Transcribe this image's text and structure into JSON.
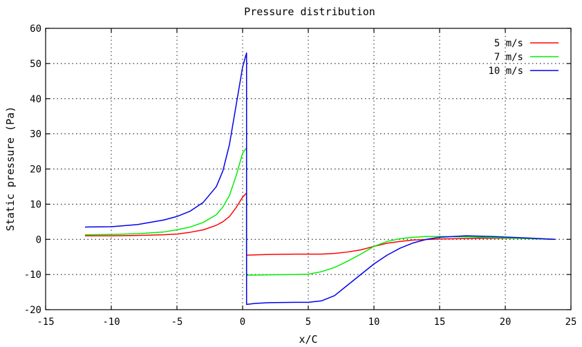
{
  "chart_data": {
    "type": "line",
    "title": "Pressure distribution",
    "xlabel": "x/C",
    "ylabel": "Static pressure (Pa)",
    "xlim": [
      -15,
      25
    ],
    "ylim": [
      -20,
      60
    ],
    "xticks": [
      -15,
      -10,
      -5,
      0,
      5,
      10,
      15,
      20,
      25
    ],
    "yticks": [
      -20,
      -10,
      0,
      10,
      20,
      30,
      40,
      50,
      60
    ],
    "grid": true,
    "legend_position": "top-right",
    "series": [
      {
        "name": "5 m/s",
        "color": "#ff0000",
        "points": [
          [
            -12,
            1.0
          ],
          [
            -10,
            1.0
          ],
          [
            -8,
            1.1
          ],
          [
            -6,
            1.3
          ],
          [
            -5,
            1.5
          ],
          [
            -4,
            2.0
          ],
          [
            -3,
            2.7
          ],
          [
            -2,
            4.0
          ],
          [
            -1.5,
            5.0
          ],
          [
            -1,
            6.5
          ],
          [
            -0.5,
            9.0
          ],
          [
            0,
            12.0
          ],
          [
            0.3,
            13.2
          ],
          [
            0.3,
            -4.5
          ],
          [
            2,
            -4.3
          ],
          [
            4,
            -4.2
          ],
          [
            6,
            -4.2
          ],
          [
            7,
            -4.0
          ],
          [
            8,
            -3.6
          ],
          [
            9,
            -3.0
          ],
          [
            10,
            -2.0
          ],
          [
            11,
            -1.1
          ],
          [
            12,
            -0.6
          ],
          [
            13,
            -0.2
          ],
          [
            15,
            0.1
          ],
          [
            18,
            0.3
          ],
          [
            21,
            0.3
          ],
          [
            23.8,
            0.0
          ]
        ]
      },
      {
        "name": "7 m/s",
        "color": "#00ee00",
        "points": [
          [
            -12,
            1.3
          ],
          [
            -10,
            1.4
          ],
          [
            -8,
            1.6
          ],
          [
            -6,
            2.1
          ],
          [
            -5,
            2.7
          ],
          [
            -4,
            3.5
          ],
          [
            -3,
            4.8
          ],
          [
            -2,
            7.0
          ],
          [
            -1.5,
            9.2
          ],
          [
            -1,
            12.5
          ],
          [
            -0.5,
            18.0
          ],
          [
            0,
            24.5
          ],
          [
            0.3,
            26.0
          ],
          [
            0.3,
            -10.2
          ],
          [
            2,
            -10.1
          ],
          [
            4,
            -10.0
          ],
          [
            5,
            -9.9
          ],
          [
            6,
            -9.2
          ],
          [
            7,
            -8.0
          ],
          [
            8,
            -6.2
          ],
          [
            9,
            -4.2
          ],
          [
            10,
            -2.0
          ],
          [
            11,
            -0.6
          ],
          [
            12,
            0.2
          ],
          [
            13,
            0.6
          ],
          [
            14,
            0.8
          ],
          [
            15,
            0.8
          ],
          [
            17,
            0.7
          ],
          [
            20,
            0.4
          ],
          [
            23.8,
            0.0
          ]
        ]
      },
      {
        "name": "10 m/s",
        "color": "#0000ee",
        "points": [
          [
            -12,
            3.5
          ],
          [
            -10,
            3.6
          ],
          [
            -8,
            4.2
          ],
          [
            -6,
            5.5
          ],
          [
            -5,
            6.5
          ],
          [
            -4,
            8.0
          ],
          [
            -3,
            10.5
          ],
          [
            -2,
            15.0
          ],
          [
            -1.5,
            19.5
          ],
          [
            -1,
            27.0
          ],
          [
            -0.5,
            38.0
          ],
          [
            0,
            49.0
          ],
          [
            0.3,
            53.0
          ],
          [
            0.3,
            -18.5
          ],
          [
            1,
            -18.2
          ],
          [
            2,
            -18.0
          ],
          [
            4,
            -17.9
          ],
          [
            5,
            -17.9
          ],
          [
            6,
            -17.5
          ],
          [
            7,
            -16.0
          ],
          [
            8,
            -13.0
          ],
          [
            9,
            -10.0
          ],
          [
            10,
            -7.0
          ],
          [
            11,
            -4.5
          ],
          [
            12,
            -2.5
          ],
          [
            13,
            -1.0
          ],
          [
            14,
            0.0
          ],
          [
            15,
            0.6
          ],
          [
            17,
            1.0
          ],
          [
            19,
            0.8
          ],
          [
            21,
            0.5
          ],
          [
            23.8,
            0.0
          ]
        ]
      }
    ]
  }
}
